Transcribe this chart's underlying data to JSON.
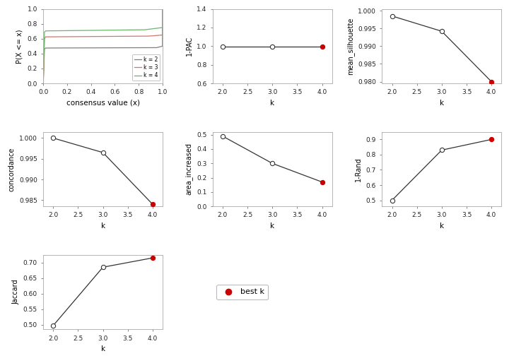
{
  "ecdf": {
    "colors": {
      "k2": "#7f7f7f",
      "k3": "#d4756b",
      "k4": "#6db36d"
    },
    "xlabel": "consensus value (x)",
    "ylabel": "P(X <= x)",
    "ylim": [
      0.0,
      1.0
    ],
    "xlim": [
      0.0,
      1.0
    ]
  },
  "pac": {
    "k": [
      2,
      3,
      4
    ],
    "values": [
      0.998,
      0.998,
      0.998
    ],
    "best_k": 4,
    "xlabel": "k",
    "ylabel": "1-PAC",
    "ylim": [
      0.6,
      1.4
    ],
    "xlim": [
      1.8,
      4.2
    ],
    "yticks": [
      0.6,
      0.8,
      1.0,
      1.2,
      1.4
    ]
  },
  "silhouette": {
    "k": [
      2,
      3,
      4
    ],
    "values": [
      0.9985,
      0.9942,
      0.98
    ],
    "best_k": 4,
    "xlabel": "k",
    "ylabel": "mean_silhouette",
    "ylim": [
      0.9795,
      1.0005
    ],
    "xlim": [
      1.8,
      4.2
    ],
    "yticks": [
      0.98,
      0.985,
      0.99,
      0.995,
      1.0
    ]
  },
  "concordance": {
    "k": [
      2,
      3,
      4
    ],
    "values": [
      1.0,
      0.9965,
      0.984
    ],
    "best_k": 4,
    "xlabel": "k",
    "ylabel": "concordance",
    "ylim": [
      0.9835,
      1.0015
    ],
    "xlim": [
      1.8,
      4.2
    ],
    "yticks": [
      0.985,
      0.99,
      0.995,
      1.0
    ]
  },
  "area_increased": {
    "k": [
      2,
      3,
      4
    ],
    "values": [
      0.49,
      0.3,
      0.17
    ],
    "best_k": 4,
    "xlabel": "k",
    "ylabel": "area_increased",
    "ylim": [
      0.0,
      0.52
    ],
    "xlim": [
      1.8,
      4.2
    ],
    "yticks": [
      0.0,
      0.1,
      0.2,
      0.3,
      0.4,
      0.5
    ]
  },
  "rand": {
    "k": [
      2,
      3,
      4
    ],
    "values": [
      0.5,
      0.83,
      0.9
    ],
    "best_k": 4,
    "xlabel": "k",
    "ylabel": "1-Rand",
    "ylim": [
      0.46,
      0.95
    ],
    "xlim": [
      1.8,
      4.2
    ],
    "yticks": [
      0.5,
      0.6,
      0.7,
      0.8,
      0.9
    ]
  },
  "jaccard": {
    "k": [
      2,
      3,
      4
    ],
    "values": [
      0.497,
      0.685,
      0.715
    ],
    "best_k": 4,
    "xlabel": "k",
    "ylabel": "Jaccard",
    "ylim": [
      0.485,
      0.725
    ],
    "xlim": [
      1.8,
      4.2
    ],
    "yticks": [
      0.5,
      0.55,
      0.6,
      0.65,
      0.7
    ]
  },
  "open_circle_color": "#ffffff",
  "closed_circle_color": "#cc0000",
  "line_color": "#333333",
  "bg_color": "#ffffff",
  "panel_bg": "#ffffff"
}
